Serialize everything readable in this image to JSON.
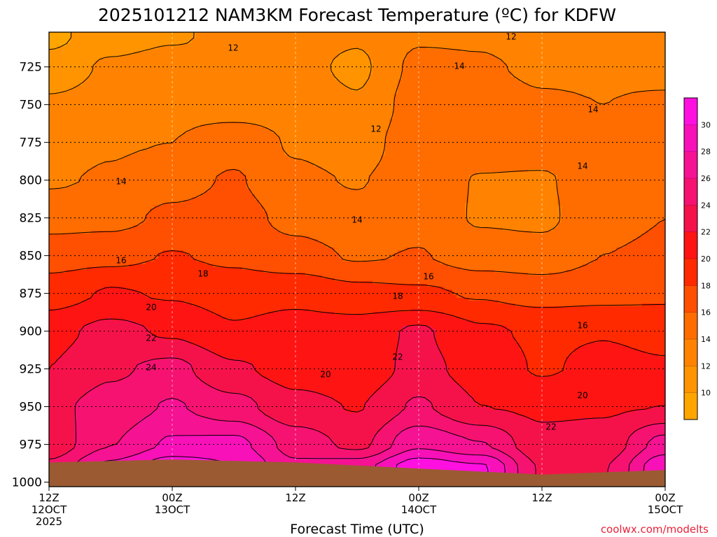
{
  "title": "2025101212 NAM3KM Forecast Temperature (ºC) for KDFW",
  "credit": "coolwx.com/modelts",
  "chart_data": {
    "type": "heatmap",
    "title": "2025101212 NAM3KM Forecast Temperature (ºC) for KDFW",
    "xlabel": "Forecast Time (UTC)",
    "ylabel": "",
    "x_ticks": [
      {
        "top": "12Z",
        "middle": "12OCT",
        "bottom": "2025"
      },
      {
        "top": "00Z",
        "middle": "13OCT",
        "bottom": ""
      },
      {
        "top": "12Z",
        "middle": "",
        "bottom": ""
      },
      {
        "top": "00Z",
        "middle": "14OCT",
        "bottom": ""
      },
      {
        "top": "12Z",
        "middle": "",
        "bottom": ""
      },
      {
        "top": "00Z",
        "middle": "15OCT",
        "bottom": ""
      }
    ],
    "x_hours": [
      0,
      12,
      24,
      36,
      48,
      60
    ],
    "y_ticks": [
      725,
      750,
      775,
      800,
      825,
      850,
      875,
      900,
      925,
      950,
      975,
      1000
    ],
    "ylim": [
      1003,
      702
    ],
    "colorbar": {
      "levels": [
        8,
        10,
        12,
        14,
        16,
        18,
        20,
        22,
        24,
        26,
        28,
        30,
        32
      ],
      "tick_labels": [
        "10",
        "12",
        "14",
        "16",
        "18",
        "20",
        "22",
        "24",
        "26",
        "28",
        "30"
      ],
      "colors": [
        "#ffa500",
        "#ff9400",
        "#ff8300",
        "#ff6c00",
        "#ff4f00",
        "#ff2a00",
        "#ff1414",
        "#f5124a",
        "#f51270",
        "#f51293",
        "#f810b8",
        "#ff10e0"
      ]
    },
    "contour_labels": [
      "12",
      "12",
      "12",
      "14",
      "14",
      "14",
      "14",
      "14",
      "16",
      "16",
      "16",
      "18",
      "18",
      "20",
      "20",
      "20",
      "22",
      "22",
      "22",
      "24"
    ],
    "temperature_grid": {
      "hours": [
        0,
        6,
        12,
        18,
        24,
        30,
        36,
        42,
        48,
        54,
        60
      ],
      "pressures": [
        705,
        725,
        750,
        775,
        800,
        825,
        850,
        875,
        900,
        925,
        950,
        975,
        990
      ],
      "values": [
        [
          9.5,
          11.2,
          11.8,
          12.5,
          12.8,
          12.2,
          13.8,
          13.8,
          13.0,
          13.4,
          13.2
        ],
        [
          10.8,
          12.3,
          12.8,
          12.3,
          12.6,
          11.6,
          14.5,
          14.2,
          13.7,
          13.7,
          13.4
        ],
        [
          12.3,
          12.8,
          13.4,
          13.0,
          13.2,
          12.2,
          15.0,
          14.8,
          14.2,
          14.0,
          14.3
        ],
        [
          13.1,
          13.8,
          14.0,
          15.2,
          13.8,
          13.1,
          15.2,
          14.9,
          15.0,
          14.5,
          14.9
        ],
        [
          13.8,
          14.2,
          15.3,
          16.2,
          14.3,
          13.9,
          15.0,
          13.9,
          13.8,
          15.2,
          15.5
        ],
        [
          15.2,
          15.4,
          16.4,
          16.8,
          15.4,
          14.5,
          15.3,
          13.8,
          13.6,
          15.5,
          16.0
        ],
        [
          17.2,
          17.4,
          18.1,
          17.6,
          16.7,
          15.8,
          16.1,
          15.0,
          14.8,
          16.0,
          16.3
        ],
        [
          19.0,
          20.2,
          19.8,
          19.2,
          19.5,
          18.6,
          18.3,
          17.8,
          17.2,
          17.4,
          17.6
        ],
        [
          21.4,
          22.6,
          21.7,
          20.2,
          20.8,
          21.0,
          22.3,
          20.3,
          19.7,
          19.9,
          19.5
        ],
        [
          22.0,
          23.7,
          24.6,
          22.3,
          21.2,
          20.8,
          22.6,
          21.2,
          19.8,
          20.5,
          20.2
        ],
        [
          23.5,
          24.8,
          26.2,
          24.7,
          22.6,
          21.9,
          24.3,
          22.0,
          21.7,
          21.8,
          22.0
        ],
        [
          22.7,
          25.9,
          28.3,
          28.6,
          25.2,
          23.4,
          27.6,
          26.1,
          22.5,
          22.7,
          26.8
        ],
        [
          24.5,
          28.6,
          31.4,
          30.2,
          26.4,
          27.2,
          31.3,
          30.3,
          23.8,
          23.9,
          29.6
        ]
      ]
    },
    "ground": {
      "color": "#9b5a32",
      "surface_pressure_hours": [
        0,
        12,
        24,
        36,
        48,
        60
      ],
      "surface_pressure": [
        987,
        985,
        987,
        991,
        995,
        992
      ]
    }
  }
}
